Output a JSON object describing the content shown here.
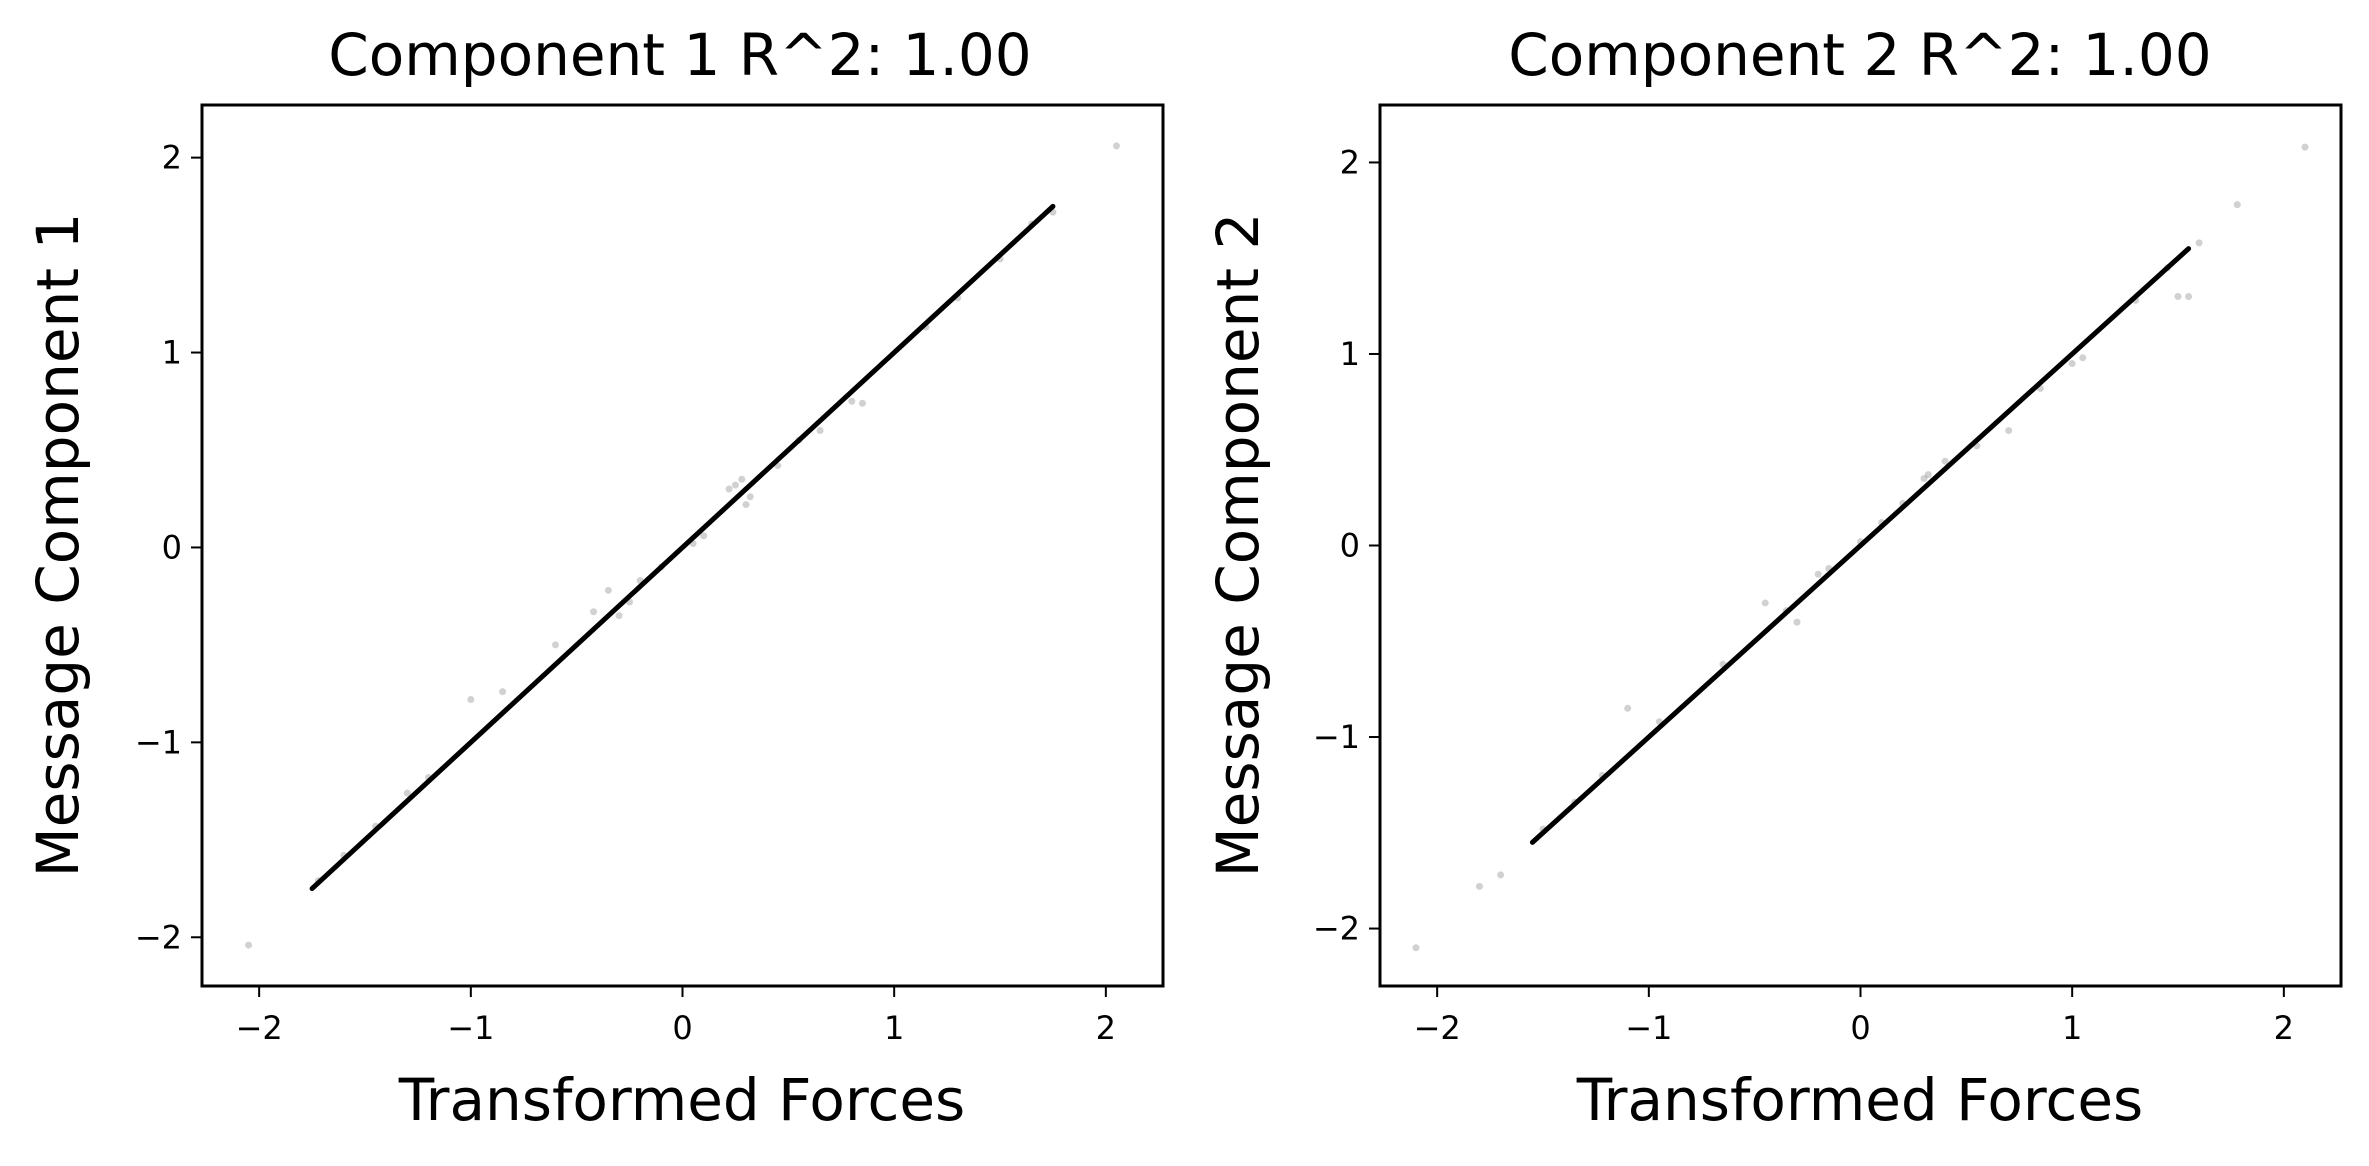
{
  "chart_data": [
    {
      "type": "scatter",
      "title": "Component 1 R^2:  1.00",
      "xlabel": "Transformed Forces",
      "ylabel": "Message Component 1",
      "xlim": [
        -2.27,
        2.27
      ],
      "ylim": [
        -2.25,
        2.27
      ],
      "xticks": [
        -2,
        -1,
        0,
        1,
        2
      ],
      "yticks": [
        -2,
        -1,
        0,
        1,
        2
      ],
      "xtick_labels": [
        "−2",
        "−1",
        "0",
        "1",
        "2"
      ],
      "ytick_labels": [
        "−2",
        "−1",
        "0",
        "1",
        "2"
      ],
      "grid": false,
      "series": [
        {
          "color": "#000000",
          "dense_line": {
            "x": [
              -1.75,
              1.75
            ],
            "y": [
              -1.75,
              1.75
            ]
          },
          "points": [
            {
              "x": -2.05,
              "y": -2.04
            },
            {
              "x": -1.72,
              "y": -1.71
            },
            {
              "x": -1.6,
              "y": -1.58
            },
            {
              "x": -1.45,
              "y": -1.43
            },
            {
              "x": -1.3,
              "y": -1.26
            },
            {
              "x": -1.2,
              "y": -1.18
            },
            {
              "x": -1.0,
              "y": -0.78
            },
            {
              "x": -0.85,
              "y": -0.74
            },
            {
              "x": -0.6,
              "y": -0.5
            },
            {
              "x": -0.42,
              "y": -0.33
            },
            {
              "x": -0.35,
              "y": -0.22
            },
            {
              "x": -0.3,
              "y": -0.35
            },
            {
              "x": -0.25,
              "y": -0.28
            },
            {
              "x": -0.2,
              "y": -0.17
            },
            {
              "x": -0.1,
              "y": -0.1
            },
            {
              "x": 0.05,
              "y": 0.02
            },
            {
              "x": 0.1,
              "y": 0.06
            },
            {
              "x": 0.22,
              "y": 0.3
            },
            {
              "x": 0.25,
              "y": 0.32
            },
            {
              "x": 0.28,
              "y": 0.35
            },
            {
              "x": 0.3,
              "y": 0.22
            },
            {
              "x": 0.32,
              "y": 0.26
            },
            {
              "x": 0.45,
              "y": 0.42
            },
            {
              "x": 0.55,
              "y": 0.55
            },
            {
              "x": 0.65,
              "y": 0.6
            },
            {
              "x": 0.8,
              "y": 0.75
            },
            {
              "x": 0.85,
              "y": 0.74
            },
            {
              "x": 1.15,
              "y": 1.13
            },
            {
              "x": 1.3,
              "y": 1.28
            },
            {
              "x": 1.5,
              "y": 1.48
            },
            {
              "x": 1.65,
              "y": 1.66
            },
            {
              "x": 1.75,
              "y": 1.72
            },
            {
              "x": 2.05,
              "y": 2.06
            }
          ]
        }
      ]
    },
    {
      "type": "scatter",
      "title": "Component 2 R^2:  1.00",
      "xlabel": "Transformed Forces",
      "ylabel": "Message Component 2",
      "xlim": [
        -2.27,
        2.27
      ],
      "ylim": [
        -2.3,
        2.3
      ],
      "xticks": [
        -2,
        -1,
        0,
        1,
        2
      ],
      "yticks": [
        -2,
        -1,
        0,
        1,
        2
      ],
      "xtick_labels": [
        "−2",
        "−1",
        "0",
        "1",
        "2"
      ],
      "ytick_labels": [
        "−2",
        "−1",
        "0",
        "1",
        "2"
      ],
      "grid": false,
      "series": [
        {
          "color": "#000000",
          "dense_line": {
            "x": [
              -1.55,
              1.55
            ],
            "y": [
              -1.55,
              1.55
            ]
          },
          "points": [
            {
              "x": -2.1,
              "y": -2.1
            },
            {
              "x": -1.8,
              "y": -1.78
            },
            {
              "x": -1.7,
              "y": -1.72
            },
            {
              "x": -1.5,
              "y": -1.48
            },
            {
              "x": -1.35,
              "y": -1.34
            },
            {
              "x": -1.22,
              "y": -1.2
            },
            {
              "x": -1.1,
              "y": -0.85
            },
            {
              "x": -0.95,
              "y": -0.92
            },
            {
              "x": -0.65,
              "y": -0.62
            },
            {
              "x": -0.45,
              "y": -0.3
            },
            {
              "x": -0.35,
              "y": -0.34
            },
            {
              "x": -0.3,
              "y": -0.4
            },
            {
              "x": -0.2,
              "y": -0.15
            },
            {
              "x": -0.15,
              "y": -0.12
            },
            {
              "x": 0.0,
              "y": 0.02
            },
            {
              "x": 0.1,
              "y": 0.12
            },
            {
              "x": 0.2,
              "y": 0.22
            },
            {
              "x": 0.3,
              "y": 0.35
            },
            {
              "x": 0.32,
              "y": 0.37
            },
            {
              "x": 0.4,
              "y": 0.44
            },
            {
              "x": 0.55,
              "y": 0.52
            },
            {
              "x": 0.7,
              "y": 0.6
            },
            {
              "x": 0.85,
              "y": 0.82
            },
            {
              "x": 1.0,
              "y": 0.95
            },
            {
              "x": 1.05,
              "y": 0.98
            },
            {
              "x": 1.3,
              "y": 1.28
            },
            {
              "x": 1.45,
              "y": 1.45
            },
            {
              "x": 1.5,
              "y": 1.3
            },
            {
              "x": 1.55,
              "y": 1.3
            },
            {
              "x": 1.6,
              "y": 1.58
            },
            {
              "x": 1.78,
              "y": 1.78
            },
            {
              "x": 2.1,
              "y": 2.08
            }
          ]
        }
      ]
    }
  ]
}
